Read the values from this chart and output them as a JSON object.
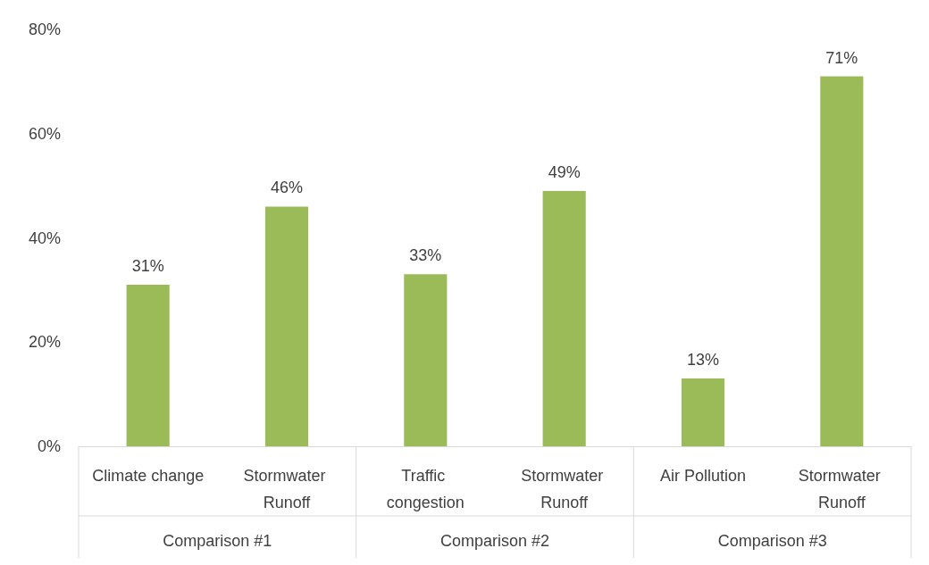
{
  "chart_data": {
    "type": "bar",
    "categories": [
      "Climate change",
      "Stormwater Runoff",
      "Traffic congestion",
      "Stormwater Runoff",
      "Air Pollution",
      "Stormwater Runoff"
    ],
    "values": [
      31,
      46,
      33,
      49,
      13,
      71
    ],
    "value_labels": [
      "31%",
      "46%",
      "33%",
      "49%",
      "13%",
      "71%"
    ],
    "color": "#9bbb59",
    "ylim": [
      0,
      80
    ],
    "yticks": [
      {
        "value": 0,
        "label": "0%"
      },
      {
        "value": 20,
        "label": "20%"
      },
      {
        "value": 40,
        "label": "40%"
      },
      {
        "value": 60,
        "label": "60%"
      },
      {
        "value": 80,
        "label": "80%"
      }
    ],
    "annotations": [
      "Comparison #1",
      "Comparison #2",
      "Comparison #3"
    ],
    "grid": false
  }
}
